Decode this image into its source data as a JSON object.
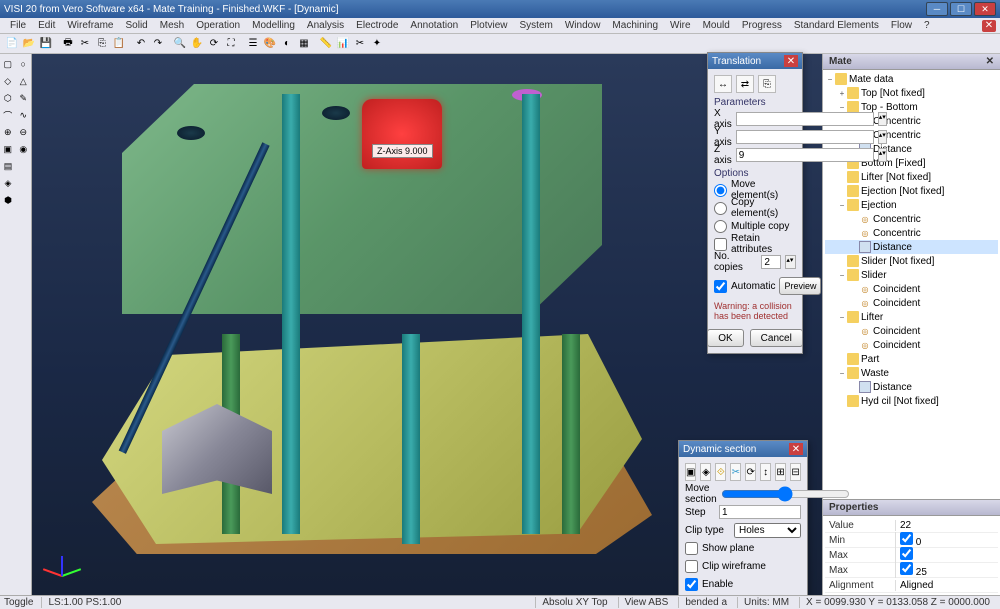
{
  "app": {
    "title": "VISI 20 from Vero Software x64 - Mate Training - Finished.WKF - [Dynamic]"
  },
  "menu": [
    "File",
    "Edit",
    "Wireframe",
    "Solid",
    "Mesh",
    "Operation",
    "Modelling",
    "Analysis",
    "Electrode",
    "Annotation",
    "Plotview",
    "System",
    "Window",
    "Machining",
    "Wire",
    "Mould",
    "Progress",
    "Standard Elements",
    "Flow",
    "?"
  ],
  "translation": {
    "title": "Translation",
    "sections": {
      "param": "Parameters",
      "options": "Options"
    },
    "xaxis_label": "X axis",
    "xaxis_val": "",
    "yaxis_label": "Y axis",
    "yaxis_val": "",
    "zaxis_label": "Z axis",
    "zaxis_val": "9",
    "opt_move": "Move element(s)",
    "opt_copy": "Copy element(s)",
    "opt_multi": "Multiple copy",
    "retain_label": "Retain attributes",
    "copies_label": "No. copies",
    "copies_val": "2",
    "auto_label": "Automatic",
    "preview_btn": "Preview",
    "warning": "Warning: a collision has been detected",
    "ok": "OK",
    "cancel": "Cancel"
  },
  "dynsection": {
    "title": "Dynamic section",
    "move_label": "Move section",
    "step_label": "Step",
    "step_val": "1",
    "cliptype_label": "Clip type",
    "cliptype_val": "Holes",
    "showplane": "Show plane",
    "clipwire": "Clip wireframe",
    "enable": "Enable"
  },
  "mate_panel": {
    "title": "Mate",
    "tree": [
      {
        "ind": 0,
        "exp": "−",
        "ic": "folder",
        "label": "Mate data"
      },
      {
        "ind": 1,
        "exp": "+",
        "ic": "folder",
        "label": "Top [Not fixed]"
      },
      {
        "ind": 1,
        "exp": "−",
        "ic": "folder",
        "label": "Top - Bottom"
      },
      {
        "ind": 2,
        "exp": "",
        "ic": "conc",
        "label": "Concentric"
      },
      {
        "ind": 2,
        "exp": "",
        "ic": "conc",
        "label": "Concentric"
      },
      {
        "ind": 2,
        "exp": "",
        "ic": "doc",
        "label": "Distance"
      },
      {
        "ind": 1,
        "exp": "",
        "ic": "folder",
        "label": "Bottom [Fixed]"
      },
      {
        "ind": 1,
        "exp": "",
        "ic": "folder",
        "label": "Lifter [Not fixed]"
      },
      {
        "ind": 1,
        "exp": "",
        "ic": "folder",
        "label": "Ejection [Not fixed]"
      },
      {
        "ind": 1,
        "exp": "−",
        "ic": "folder",
        "label": "Ejection"
      },
      {
        "ind": 2,
        "exp": "",
        "ic": "conc",
        "label": "Concentric"
      },
      {
        "ind": 2,
        "exp": "",
        "ic": "conc",
        "label": "Concentric"
      },
      {
        "ind": 2,
        "exp": "",
        "ic": "doc",
        "label": "Distance",
        "sel": true
      },
      {
        "ind": 1,
        "exp": "",
        "ic": "folder",
        "label": "Slider [Not fixed]"
      },
      {
        "ind": 1,
        "exp": "−",
        "ic": "folder",
        "label": "Slider"
      },
      {
        "ind": 2,
        "exp": "",
        "ic": "conc",
        "label": "Coincident"
      },
      {
        "ind": 2,
        "exp": "",
        "ic": "conc",
        "label": "Coincident"
      },
      {
        "ind": 1,
        "exp": "−",
        "ic": "folder",
        "label": "Lifter"
      },
      {
        "ind": 2,
        "exp": "",
        "ic": "conc",
        "label": "Coincident"
      },
      {
        "ind": 2,
        "exp": "",
        "ic": "conc",
        "label": "Coincident"
      },
      {
        "ind": 1,
        "exp": "",
        "ic": "folder",
        "label": "Part"
      },
      {
        "ind": 1,
        "exp": "−",
        "ic": "folder",
        "label": "Waste"
      },
      {
        "ind": 2,
        "exp": "",
        "ic": "doc",
        "label": "Distance"
      },
      {
        "ind": 1,
        "exp": "",
        "ic": "folder",
        "label": "Hyd cil [Not fixed]"
      }
    ]
  },
  "properties": {
    "title": "Properties",
    "rows": [
      {
        "k": "Value",
        "v": "22"
      },
      {
        "k": "Min",
        "v": "☑",
        "chk": true,
        "v2": "0"
      },
      {
        "k": "Max",
        "v": "☑",
        "chk": true,
        "v2": ""
      },
      {
        "k": "Max",
        "v": "☑",
        "chk": true,
        "v2": "25"
      },
      {
        "k": "Alignment",
        "v": "Aligned"
      }
    ]
  },
  "viewport": {
    "zlabel": "Z-Axis 9.000"
  },
  "statusbar": {
    "toggle": "Toggle",
    "ls": "LS:1.00 PS:1.00",
    "abs": "Absolu XY Top",
    "view": "View ABS",
    "bend": "bended a",
    "units": "Units: MM",
    "coords": "X = 0099.930 Y = 0133.058 Z = 0000.000"
  }
}
